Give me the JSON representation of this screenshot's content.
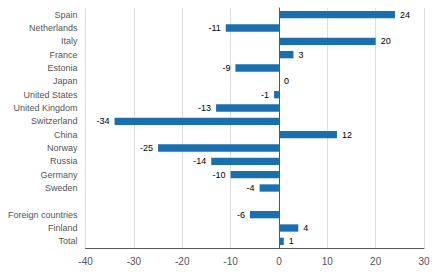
{
  "chart_data": {
    "type": "bar",
    "orientation": "horizontal",
    "categories": [
      "Total",
      "Finland",
      "Foreign countries",
      null,
      "Sweden",
      "Germany",
      "Russia",
      "Norway",
      "China",
      "Switzerland",
      "United Kingdom",
      "United States",
      "Japan",
      "Estonia",
      "France",
      "Italy",
      "Netherlands",
      "Spain"
    ],
    "values": [
      1,
      4,
      -6,
      null,
      -4,
      -10,
      -14,
      -25,
      12,
      -34,
      -13,
      -1,
      0,
      -9,
      3,
      20,
      -11,
      24
    ],
    "color": "#1a6faf",
    "xlim": [
      -40,
      30
    ],
    "xticks": [
      -40,
      -30,
      -20,
      -10,
      0,
      10,
      20,
      30
    ],
    "grid": true,
    "data_labels": true
  }
}
